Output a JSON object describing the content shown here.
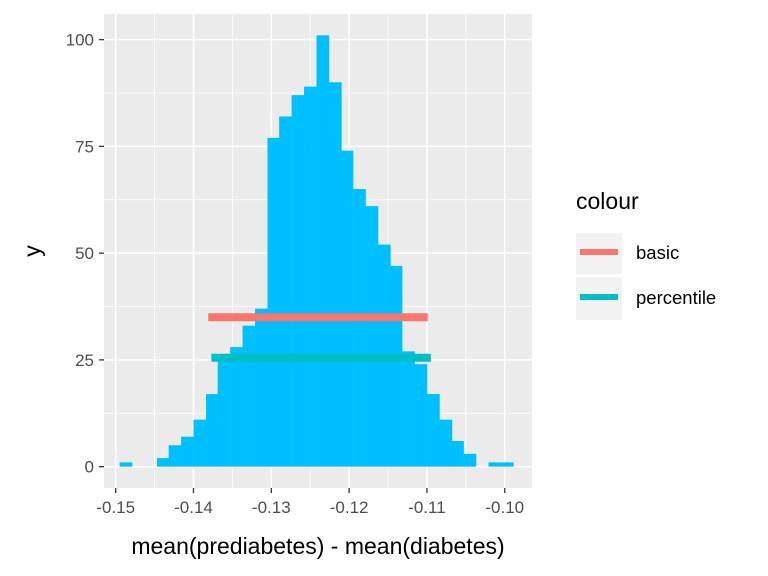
{
  "chart_data": {
    "type": "bar",
    "subtype": "histogram",
    "xlabel": "mean(prediabetes) - mean(diabetes)",
    "ylabel": "y",
    "xlim": [
      -0.1515,
      -0.0965
    ],
    "ylim": [
      -5,
      106
    ],
    "x_ticks": [
      -0.15,
      -0.14,
      -0.13,
      -0.12,
      -0.11,
      -0.1
    ],
    "x_tick_labels": [
      "-0.15",
      "-0.14",
      "-0.13",
      "-0.12",
      "-0.11",
      "-0.10"
    ],
    "y_ticks": [
      0,
      25,
      50,
      75,
      100
    ],
    "y_tick_labels": [
      "0",
      "25",
      "50",
      "75",
      "100"
    ],
    "grid": true,
    "bar_color": "#00BFFF",
    "bin_width": 0.00158,
    "bins": [
      {
        "x": -0.1487,
        "count": 1
      },
      {
        "x": -0.1471,
        "count": 0
      },
      {
        "x": -0.1455,
        "count": 0
      },
      {
        "x": -0.1439,
        "count": 2
      },
      {
        "x": -0.1424,
        "count": 5
      },
      {
        "x": -0.1408,
        "count": 7
      },
      {
        "x": -0.1392,
        "count": 11
      },
      {
        "x": -0.1376,
        "count": 17
      },
      {
        "x": -0.1361,
        "count": 26
      },
      {
        "x": -0.1345,
        "count": 28
      },
      {
        "x": -0.1329,
        "count": 33
      },
      {
        "x": -0.1313,
        "count": 37
      },
      {
        "x": -0.1297,
        "count": 77
      },
      {
        "x": -0.1282,
        "count": 82
      },
      {
        "x": -0.1266,
        "count": 87
      },
      {
        "x": -0.125,
        "count": 89
      },
      {
        "x": -0.1234,
        "count": 101
      },
      {
        "x": -0.1218,
        "count": 90
      },
      {
        "x": -0.1203,
        "count": 74
      },
      {
        "x": -0.1187,
        "count": 65
      },
      {
        "x": -0.1171,
        "count": 61
      },
      {
        "x": -0.1155,
        "count": 52
      },
      {
        "x": -0.114,
        "count": 47
      },
      {
        "x": -0.1124,
        "count": 27
      },
      {
        "x": -0.1108,
        "count": 24
      },
      {
        "x": -0.1092,
        "count": 17
      },
      {
        "x": -0.1076,
        "count": 11
      },
      {
        "x": -0.1061,
        "count": 6
      },
      {
        "x": -0.1045,
        "count": 3
      },
      {
        "x": -0.1029,
        "count": 0
      },
      {
        "x": -0.1013,
        "count": 1
      },
      {
        "x": -0.0997,
        "count": 1
      }
    ],
    "intervals": [
      {
        "name": "basic",
        "color": "#F8766D",
        "x_start": -0.1381,
        "x_end": -0.1099,
        "y": 35
      },
      {
        "name": "percentile",
        "color": "#00BFC4",
        "x_start": -0.1377,
        "x_end": -0.1095,
        "y": 25.5
      }
    ],
    "legend": {
      "title": "colour",
      "placement": "right",
      "entries": [
        {
          "label": "basic",
          "color": "#F8766D"
        },
        {
          "label": "percentile",
          "color": "#00BFC4"
        }
      ]
    }
  }
}
